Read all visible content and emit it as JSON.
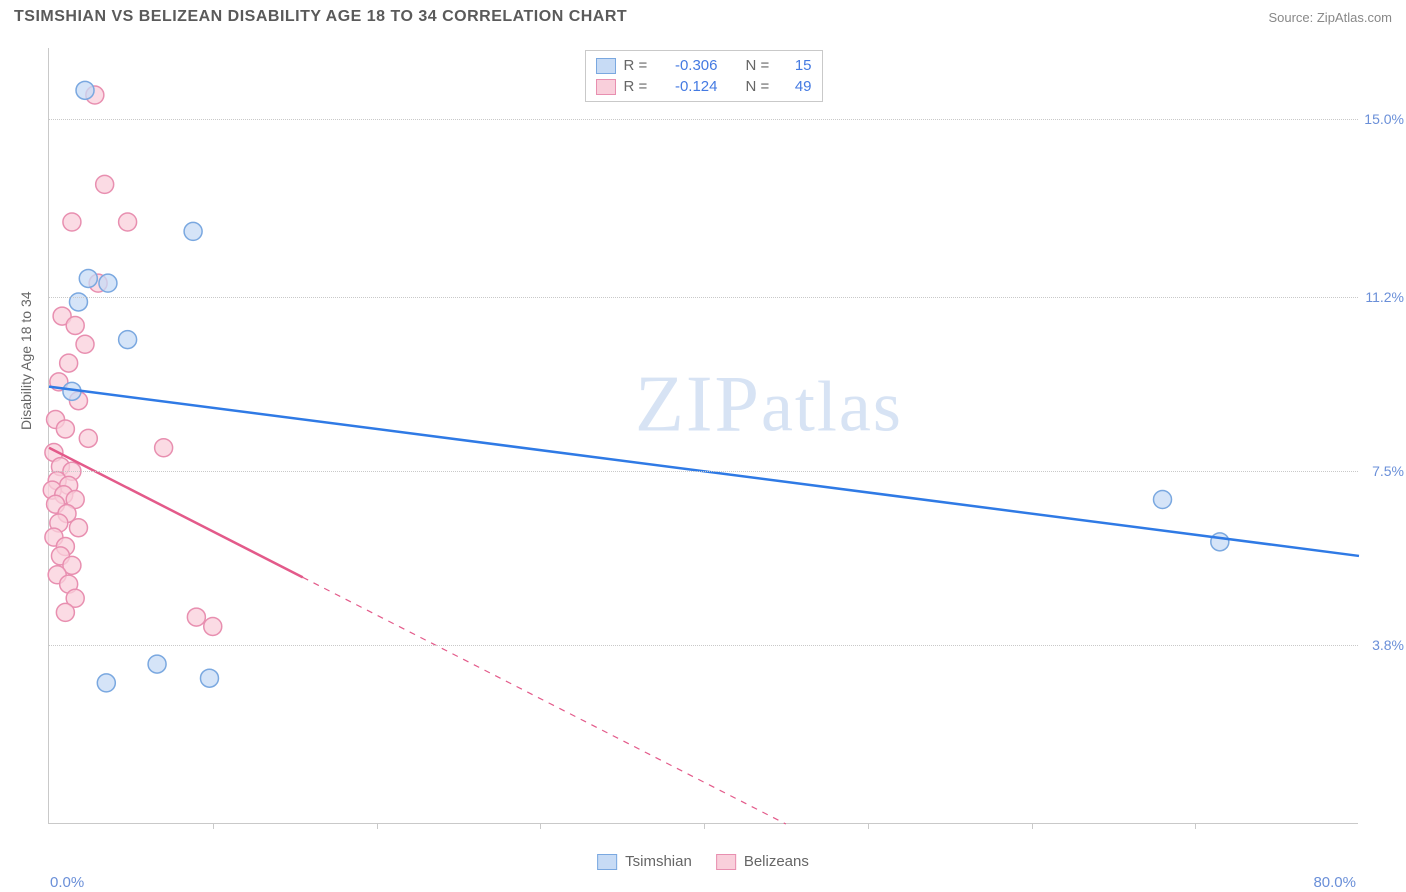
{
  "title": "TSIMSHIAN VS BELIZEAN DISABILITY AGE 18 TO 34 CORRELATION CHART",
  "source": "Source: ZipAtlas.com",
  "yaxis_title": "Disability Age 18 to 34",
  "watermark": "ZIPatlas",
  "chart": {
    "type": "scatter",
    "background_color": "#ffffff",
    "grid_color": "#c9c9c9",
    "axis_color": "#c9c9c9",
    "xlim": [
      0,
      80
    ],
    "ylim": [
      0,
      16.5
    ],
    "x_min_label": "0.0%",
    "x_max_label": "80.0%",
    "y_ticks": [
      3.8,
      7.5,
      11.2,
      15.0
    ],
    "y_tick_labels": [
      "3.8%",
      "7.5%",
      "11.2%",
      "15.0%"
    ],
    "x_tick_positions": [
      10,
      20,
      30,
      40,
      50,
      60,
      70
    ],
    "axis_label_color": "#6a8fd8",
    "marker_radius": 9,
    "marker_stroke_width": 1.5,
    "trend_line_width": 2.5,
    "series": [
      {
        "name": "Tsimshian",
        "color_fill": "#c7dbf5",
        "color_stroke": "#7aa8e0",
        "trend_color": "#2f7ae5",
        "R": "-0.306",
        "N": "15",
        "trend": {
          "x1": 0,
          "y1": 9.3,
          "x2": 80,
          "y2": 5.7,
          "dash_from_x": null
        },
        "points": [
          [
            2.2,
            15.6
          ],
          [
            8.8,
            12.6
          ],
          [
            2.4,
            11.6
          ],
          [
            3.6,
            11.5
          ],
          [
            1.8,
            11.1
          ],
          [
            4.8,
            10.3
          ],
          [
            1.4,
            9.2
          ],
          [
            6.6,
            3.4
          ],
          [
            9.8,
            3.1
          ],
          [
            3.5,
            3.0
          ],
          [
            68.0,
            6.9
          ],
          [
            71.5,
            6.0
          ]
        ]
      },
      {
        "name": "Belizeans",
        "color_fill": "#f9cfdb",
        "color_stroke": "#e88fb0",
        "trend_color": "#e35a8a",
        "R": "-0.124",
        "N": "49",
        "trend": {
          "x1": 0,
          "y1": 8.0,
          "x2": 45,
          "y2": 0.0,
          "dash_from_x": 15.5
        },
        "points": [
          [
            2.8,
            15.5
          ],
          [
            3.4,
            13.6
          ],
          [
            1.4,
            12.8
          ],
          [
            4.8,
            12.8
          ],
          [
            3.0,
            11.5
          ],
          [
            0.8,
            10.8
          ],
          [
            1.6,
            10.6
          ],
          [
            2.2,
            10.2
          ],
          [
            1.2,
            9.8
          ],
          [
            0.6,
            9.4
          ],
          [
            1.8,
            9.0
          ],
          [
            0.4,
            8.6
          ],
          [
            1.0,
            8.4
          ],
          [
            2.4,
            8.2
          ],
          [
            7.0,
            8.0
          ],
          [
            0.3,
            7.9
          ],
          [
            0.7,
            7.6
          ],
          [
            1.4,
            7.5
          ],
          [
            0.5,
            7.3
          ],
          [
            1.2,
            7.2
          ],
          [
            0.2,
            7.1
          ],
          [
            0.9,
            7.0
          ],
          [
            1.6,
            6.9
          ],
          [
            0.4,
            6.8
          ],
          [
            1.1,
            6.6
          ],
          [
            0.6,
            6.4
          ],
          [
            1.8,
            6.3
          ],
          [
            0.3,
            6.1
          ],
          [
            1.0,
            5.9
          ],
          [
            0.7,
            5.7
          ],
          [
            1.4,
            5.5
          ],
          [
            0.5,
            5.3
          ],
          [
            1.2,
            5.1
          ],
          [
            1.6,
            4.8
          ],
          [
            1.0,
            4.5
          ],
          [
            9.0,
            4.4
          ],
          [
            10.0,
            4.2
          ]
        ]
      }
    ]
  },
  "legend_top": {
    "r_label": "R =",
    "n_label": "N ="
  },
  "legend_bottom": {
    "items": [
      "Tsimshian",
      "Belizeans"
    ]
  }
}
